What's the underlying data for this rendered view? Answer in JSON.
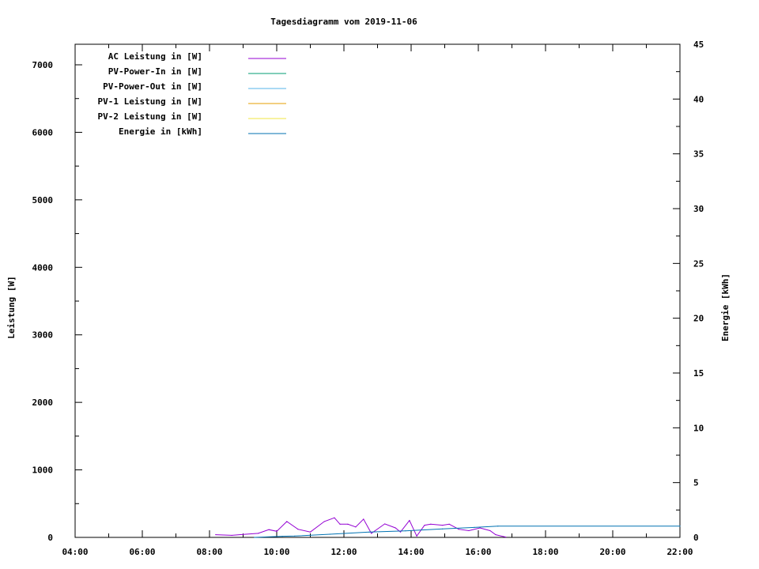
{
  "chart_data": {
    "type": "line",
    "title": "Tagesdiagramm vom 2019-11-06",
    "xlabel": "",
    "ylabel": "Leistung [W]",
    "y2label": "Energie [kWh]",
    "xlim": [
      "04:00",
      "22:00"
    ],
    "ylim": [
      0,
      7300
    ],
    "y2lim": [
      0,
      45
    ],
    "x_ticks": [
      "04:00",
      "06:00",
      "08:00",
      "10:00",
      "12:00",
      "14:00",
      "16:00",
      "18:00",
      "20:00",
      "22:00"
    ],
    "y_ticks": [
      "0",
      "1000",
      "2000",
      "3000",
      "4000",
      "5000",
      "6000",
      "7000"
    ],
    "y2_ticks": [
      "0",
      "5",
      "10",
      "15",
      "20",
      "25",
      "30",
      "35",
      "40",
      "45"
    ],
    "grid": false,
    "legend_position": "top-left",
    "series": [
      {
        "name": "AC Leistung in [W]",
        "color": "#9400d3",
        "axis": "y",
        "x": [
          "08:11",
          "08:40",
          "09:00",
          "09:27",
          "09:46",
          "10:00",
          "10:18",
          "10:38",
          "11:00",
          "11:25",
          "11:43",
          "11:53",
          "12:07",
          "12:21",
          "12:35",
          "12:49",
          "13:13",
          "13:32",
          "13:41",
          "13:57",
          "14:10",
          "14:24",
          "14:35",
          "14:56",
          "15:08",
          "15:25",
          "15:43",
          "16:03",
          "16:21",
          "16:31",
          "16:49"
        ],
        "values": [
          40,
          30,
          45,
          60,
          115,
          90,
          235,
          120,
          80,
          235,
          290,
          195,
          195,
          155,
          270,
          60,
          200,
          140,
          80,
          250,
          20,
          180,
          195,
          180,
          195,
          120,
          100,
          140,
          100,
          40,
          5
        ]
      },
      {
        "name": "PV-Power-In in [W]",
        "color": "#009e73",
        "axis": "y",
        "x": [],
        "values": []
      },
      {
        "name": "PV-Power-Out in [W]",
        "color": "#56b4e9",
        "axis": "y",
        "x": [],
        "values": []
      },
      {
        "name": "PV-1 Leistung in [W]",
        "color": "#e69f00",
        "axis": "y",
        "x": [],
        "values": []
      },
      {
        "name": "PV-2 Leistung in [W]",
        "color": "#f0e442",
        "axis": "y",
        "x": [],
        "values": []
      },
      {
        "name": "Energie in [kWh]",
        "color": "#0072b2",
        "axis": "y2",
        "x": [
          "09:20",
          "10:10",
          "10:32",
          "11:35",
          "12:45",
          "13:50",
          "14:56",
          "15:53",
          "16:35",
          "22:00"
        ],
        "values": [
          0,
          0.1,
          0.12,
          0.29,
          0.48,
          0.6,
          0.77,
          0.91,
          1.03,
          1.03
        ]
      }
    ]
  }
}
